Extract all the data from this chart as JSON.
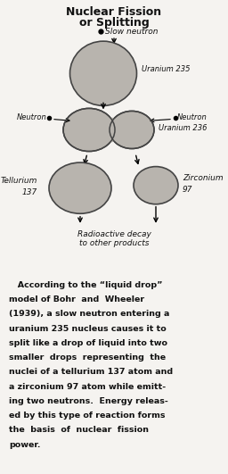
{
  "title_line1": "Nuclear Fission",
  "title_line2": "or Splitting",
  "bg_color": "#f5f3f0",
  "drop_color": "#b8b4ae",
  "drop_edge_color": "#444444",
  "text_color": "#111111",
  "body_text_lines": [
    "   According to the “liquid drop”",
    "model of Bohr  and  Wheeler",
    "(1939), a slow neutron entering a",
    "uranium 235 nucleus causes it to",
    "split like a drop of liquid into two",
    "smaller  drops  representing  the",
    "nuclei of a tellurium 137 atom and",
    "a zirconium 97 atom while emitt-",
    "ing two neutrons.  Energy releas-",
    "ed by this type of reaction forms",
    "the  basis  of  nuclear  fission",
    "power."
  ]
}
